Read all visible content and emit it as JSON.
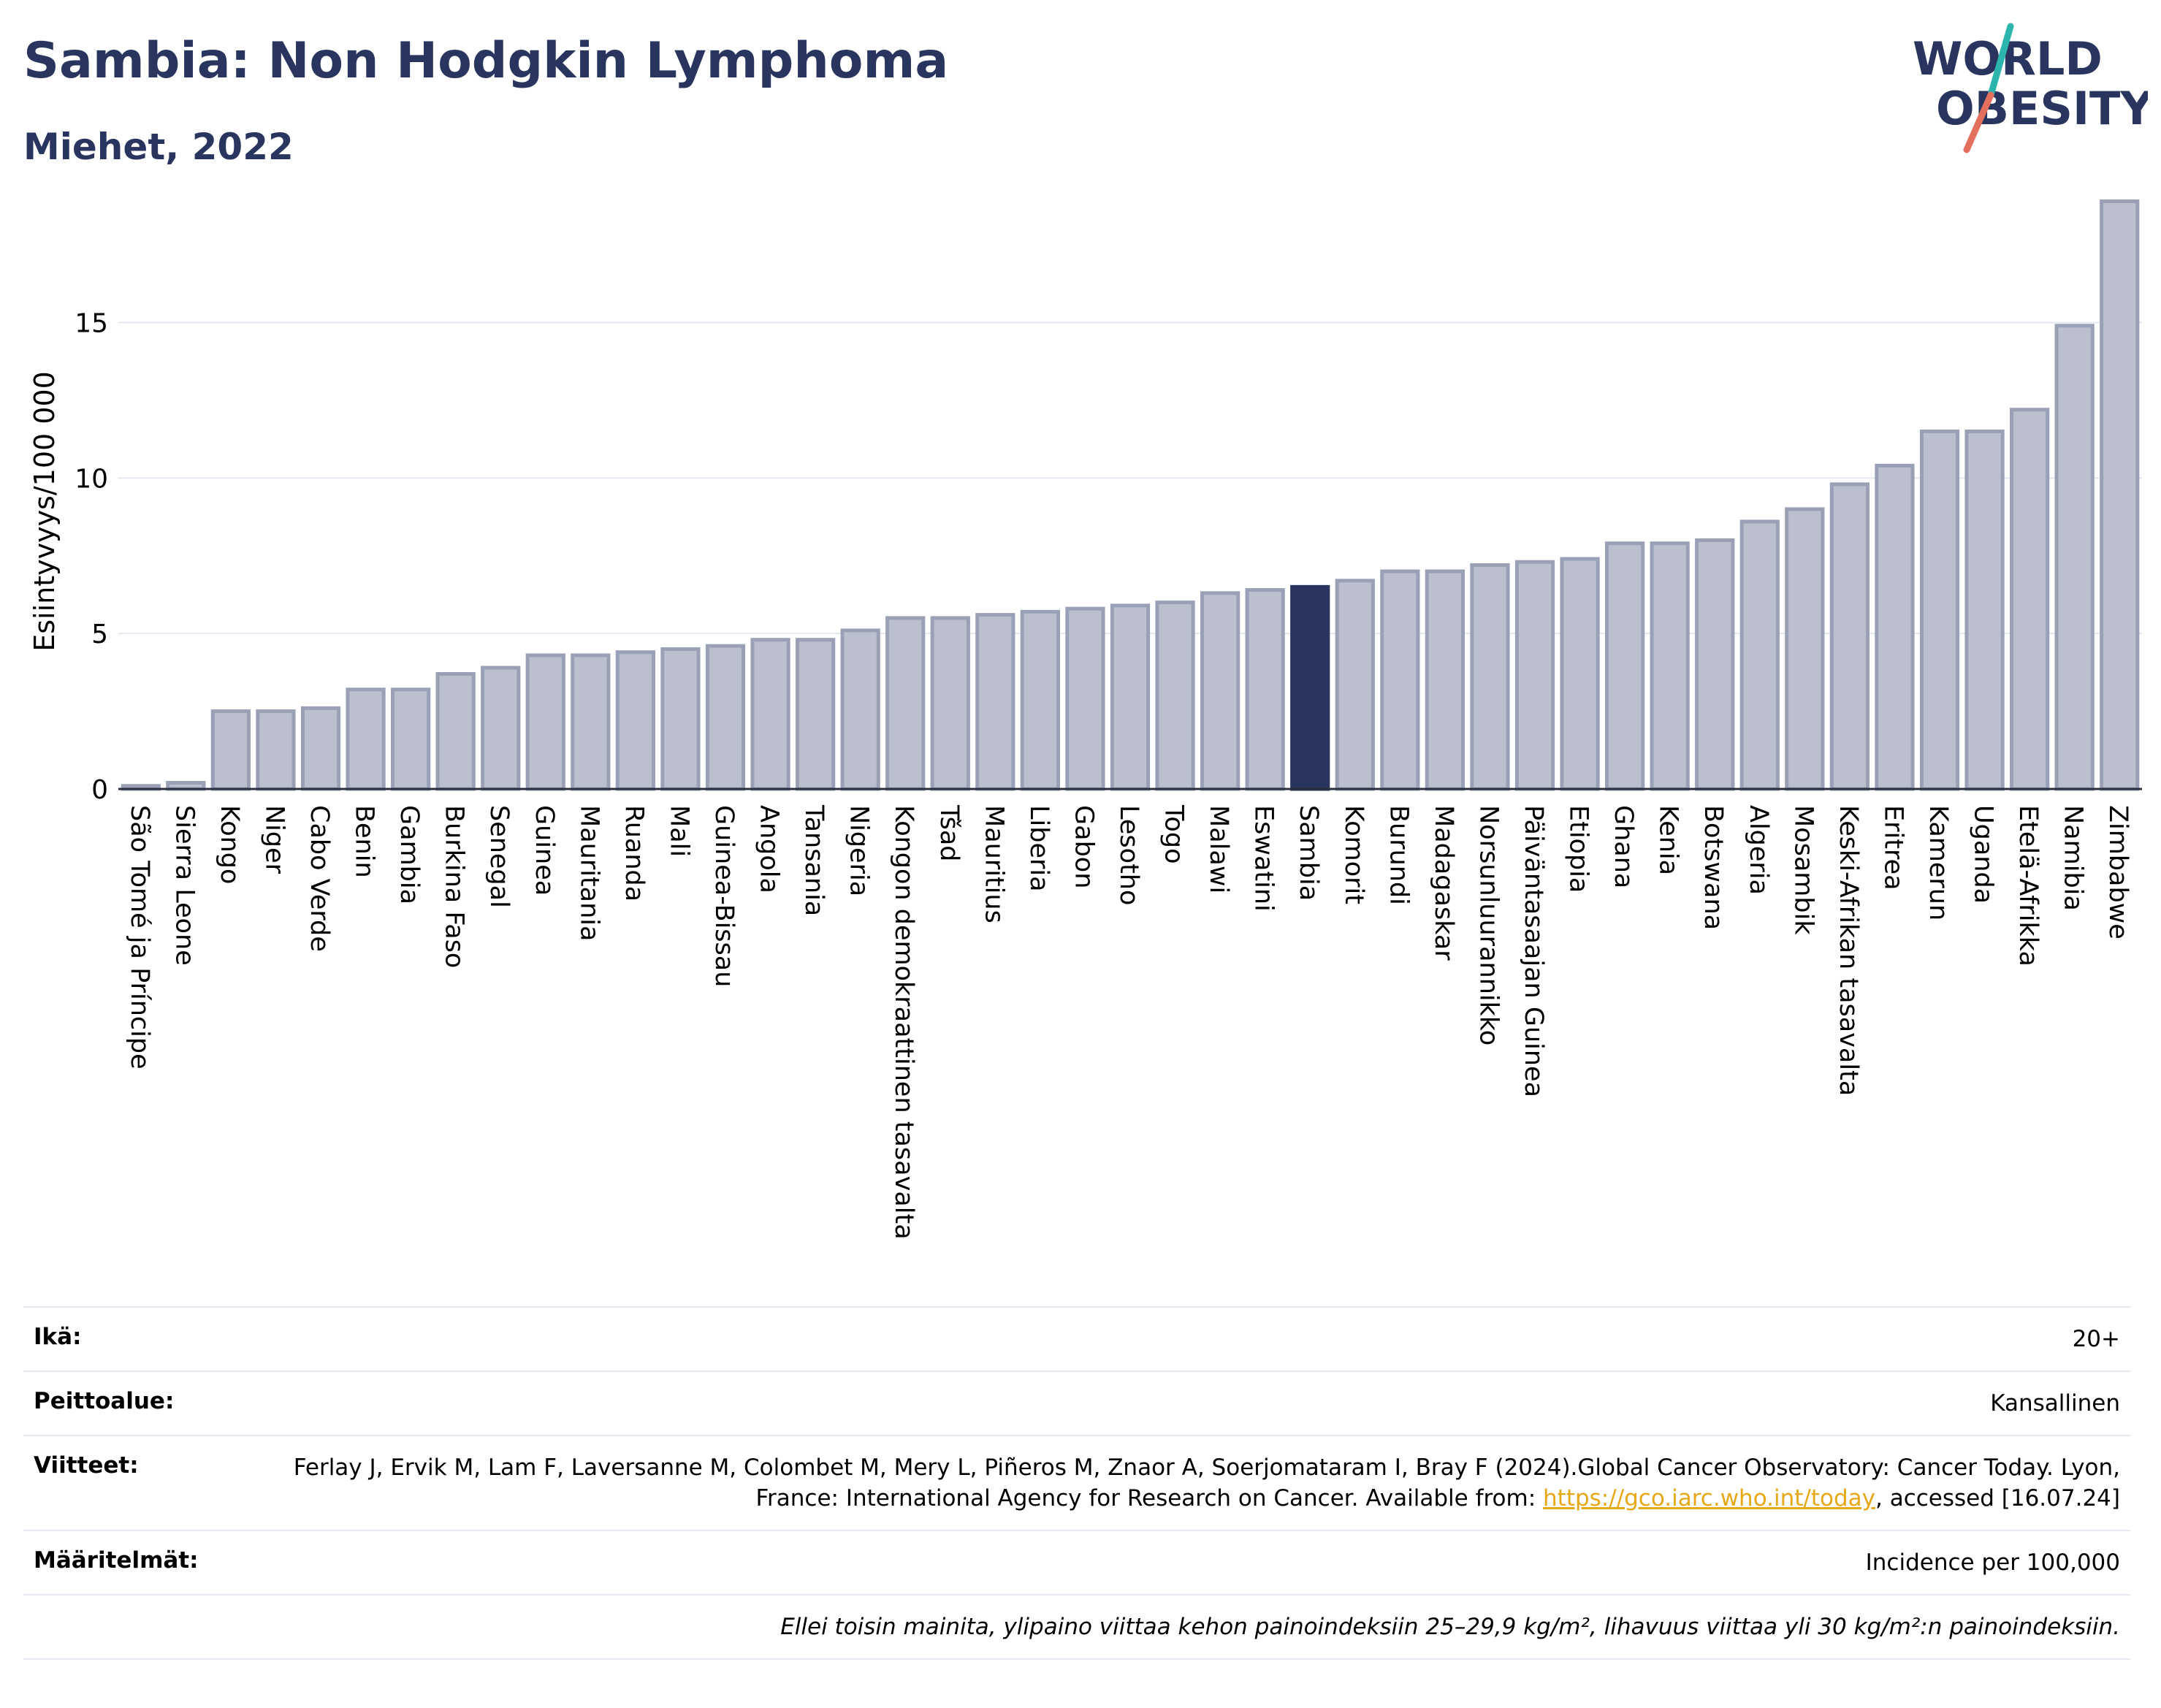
{
  "header": {
    "title": "Sambia: Non Hodgkin Lymphoma",
    "subtitle": "Miehet, 2022"
  },
  "logo": {
    "line1": "WORLD",
    "line2": "OBESITY",
    "icon": "world-obesity-logo"
  },
  "colors": {
    "primary": "#2a355f",
    "bar": "#bcc0ce",
    "bar_border": "#9aa0b6",
    "accent_teal": "#2bb5ad",
    "accent_red": "#e2705c",
    "link": "#e6a817"
  },
  "chart_data": {
    "type": "bar",
    "ylabel": "Esiintyvyys/100 000",
    "ylim": [
      0,
      19.5
    ],
    "yticks": [
      0,
      5,
      10,
      15
    ],
    "grid": true,
    "highlight": "Sambia",
    "categories": [
      "São Tomé ja Príncipe",
      "Sierra Leone",
      "Kongo",
      "Niger",
      "Cabo Verde",
      "Benin",
      "Gambia",
      "Burkina Faso",
      "Senegal",
      "Guinea",
      "Mauritania",
      "Ruanda",
      "Mali",
      "Guinea-Bissau",
      "Angola",
      "Tansania",
      "Nigeria",
      "Kongon demokraattinen tasavalta",
      "Tšad",
      "Mauritius",
      "Liberia",
      "Gabon",
      "Lesotho",
      "Togo",
      "Malawi",
      "Eswatini",
      "Sambia",
      "Komorit",
      "Burundi",
      "Madagaskar",
      "Norsunluurannikko",
      "Päiväntasaajan Guinea",
      "Etiopia",
      "Ghana",
      "Kenia",
      "Botswana",
      "Algeria",
      "Mosambik",
      "Keski-Afrikan tasavalta",
      "Eritrea",
      "Kamerun",
      "Uganda",
      "Etelä-Afrikka",
      "Namibia",
      "Zimbabwe"
    ],
    "values": [
      0.1,
      0.2,
      2.5,
      2.5,
      2.6,
      3.2,
      3.2,
      3.7,
      3.9,
      4.3,
      4.3,
      4.4,
      4.5,
      4.6,
      4.8,
      4.8,
      5.1,
      5.5,
      5.5,
      5.6,
      5.7,
      5.8,
      5.9,
      6.0,
      6.3,
      6.4,
      6.5,
      6.7,
      7.0,
      7.0,
      7.2,
      7.3,
      7.4,
      7.9,
      7.9,
      8.0,
      8.6,
      9.0,
      9.8,
      10.4,
      11.5,
      11.5,
      12.2,
      14.9,
      18.9
    ]
  },
  "info": {
    "rows": [
      {
        "label": "Ikä:",
        "value": "20+"
      },
      {
        "label": "Peittoalue:",
        "value": "Kansallinen"
      },
      {
        "label": "Viitteet:",
        "value": "Ferlay J, Ervik M, Lam F, Laversanne M, Colombet M, Mery L, Piñeros M, Znaor A, Soerjomataram I, Bray F (2024).Global Cancer Observatory: Cancer Today. Lyon, France: International Agency for Research on Cancer. Available from:",
        "link": "https://gco.iarc.who.int/today",
        "suffix": ", accessed [16.07.24]"
      },
      {
        "label": "Määritelmät:",
        "value": "Incidence per 100,000"
      }
    ],
    "note": "Ellei toisin mainita, ylipaino viittaa kehon painoindeksiin 25–29,9 kg/m², lihavuus viittaa yli 30 kg/m²:n painoindeksiin."
  }
}
